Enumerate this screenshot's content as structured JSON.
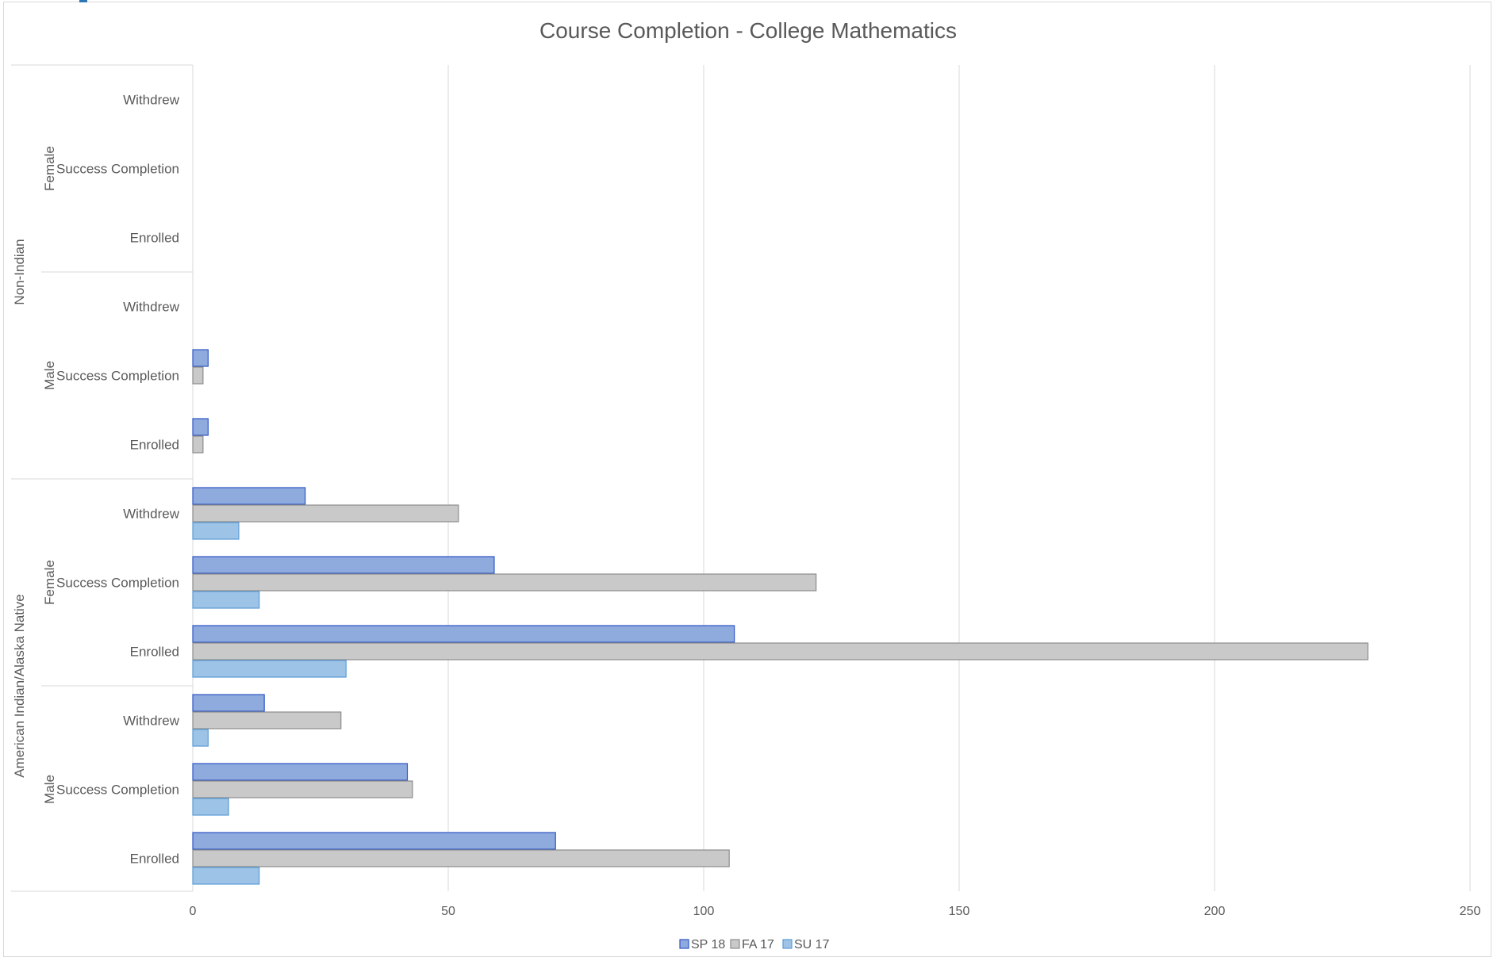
{
  "chart_data": {
    "type": "bar",
    "orientation": "horizontal",
    "title": "Course Completion  - College  Mathematics",
    "xlim": [
      0,
      250
    ],
    "x_ticks": [
      "0",
      "50",
      "100",
      "150",
      "200",
      "250"
    ],
    "grid": true,
    "legend_position": "bottom",
    "groups": [
      {
        "name": "Non-Indian",
        "subgroups": [
          {
            "name": "Female",
            "categories": [
              {
                "label": "Withdrew",
                "values": [
                  null,
                  null,
                  null
                ]
              },
              {
                "label": "Success Completion",
                "values": [
                  null,
                  null,
                  null
                ]
              },
              {
                "label": "Enrolled",
                "values": [
                  null,
                  null,
                  null
                ]
              }
            ]
          },
          {
            "name": "Male",
            "categories": [
              {
                "label": "Withdrew",
                "values": [
                  null,
                  null,
                  null
                ]
              },
              {
                "label": "Success Completion",
                "values": [
                  3,
                  2,
                  null
                ]
              },
              {
                "label": "Enrolled",
                "values": [
                  3,
                  2,
                  null
                ]
              }
            ]
          }
        ]
      },
      {
        "name": "American Indian/Alaska Native",
        "subgroups": [
          {
            "name": "Female",
            "categories": [
              {
                "label": "Withdrew",
                "values": [
                  22,
                  52,
                  9
                ]
              },
              {
                "label": "Success Completion",
                "values": [
                  59,
                  122,
                  13
                ]
              },
              {
                "label": "Enrolled",
                "values": [
                  106,
                  230,
                  30
                ]
              }
            ]
          },
          {
            "name": "Male",
            "categories": [
              {
                "label": "Withdrew",
                "values": [
                  14,
                  29,
                  3
                ]
              },
              {
                "label": "Success Completion",
                "values": [
                  42,
                  43,
                  7
                ]
              },
              {
                "label": "Enrolled",
                "values": [
                  71,
                  105,
                  13
                ]
              }
            ]
          }
        ]
      }
    ],
    "series": [
      {
        "name": "SP 18",
        "color": "#8faadc",
        "stroke": "#2f55c6"
      },
      {
        "name": "FA 17",
        "color": "#c9c9c9",
        "stroke": "#8c8c8c"
      },
      {
        "name": "SU 17",
        "color": "#9dc3e6",
        "stroke": "#5b9bd5"
      }
    ]
  }
}
